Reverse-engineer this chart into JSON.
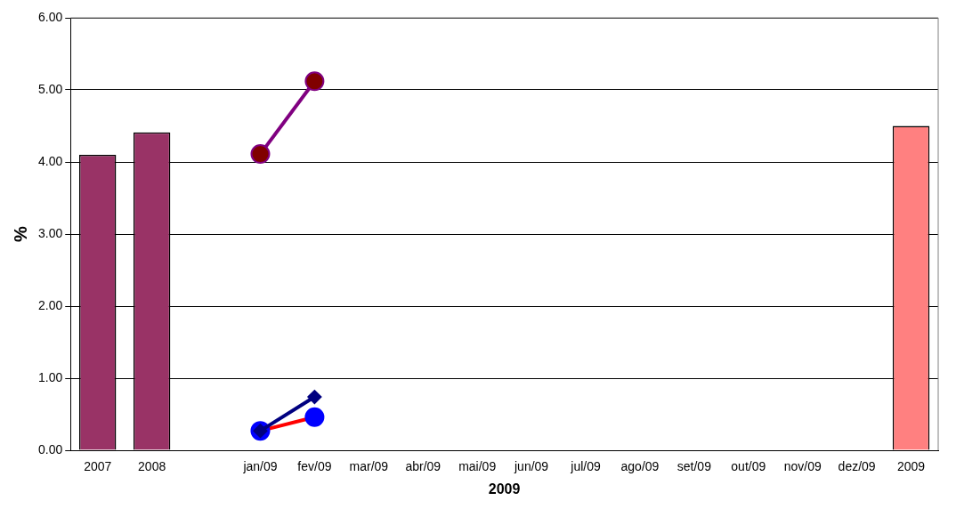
{
  "chart_data": {
    "type": "bar",
    "xlabel": "2009",
    "ylabel": "%",
    "categories": [
      "2007",
      "2008",
      null,
      "jan/09",
      "fev/09",
      "mar/09",
      "abr/09",
      "mai/09",
      "jun/09",
      "jul/09",
      "ago/09",
      "set/09",
      "out/09",
      "nov/09",
      "dez/09",
      "2009"
    ],
    "ylim": [
      0,
      6
    ],
    "yticks": [
      {
        "value": 0,
        "label": "0.00"
      },
      {
        "value": 1,
        "label": "1.00"
      },
      {
        "value": 2,
        "label": "2.00"
      },
      {
        "value": 3,
        "label": "3.00"
      },
      {
        "value": 4,
        "label": "4.00"
      },
      {
        "value": 5,
        "label": "5.00"
      },
      {
        "value": 6,
        "label": "6.00"
      }
    ],
    "grid": "y",
    "legend": false,
    "series": [
      {
        "color": "#993366",
        "colors": [
          "#993366",
          "#993366",
          null,
          null,
          null,
          null,
          null,
          null,
          null,
          null,
          null,
          null,
          null,
          null,
          null,
          "#ff8080"
        ],
        "values": [
          4.1,
          4.41,
          null,
          null,
          null,
          null,
          null,
          null,
          null,
          null,
          null,
          null,
          null,
          null,
          null,
          4.5
        ]
      },
      {
        "type": "line",
        "color": "#800080",
        "colors": [
          null,
          null,
          null,
          "#800000",
          "#800000",
          null,
          null,
          null,
          null,
          null,
          null,
          null,
          null,
          null,
          null,
          null
        ],
        "marker": "circle",
        "values": [
          null,
          null,
          null,
          4.11,
          5.12,
          null,
          null,
          null,
          null,
          null,
          null,
          null,
          null,
          null,
          null,
          null
        ]
      },
      {
        "type": "line",
        "color": "#000080",
        "colors": [
          null,
          null,
          null,
          "#000080",
          "#000080",
          null,
          null,
          null,
          null,
          null,
          null,
          null,
          null,
          null,
          null,
          null
        ],
        "marker": "diamond",
        "values": [
          null,
          null,
          null,
          0.27,
          0.74,
          null,
          null,
          null,
          null,
          null,
          null,
          null,
          null,
          null,
          null,
          null
        ]
      },
      {
        "type": "line",
        "color": "#ff0000",
        "colors": [
          null,
          null,
          null,
          "#0000ff",
          "#0000ff",
          null,
          null,
          null,
          null,
          null,
          null,
          null,
          null,
          null,
          null,
          null
        ],
        "marker": "circle",
        "values": [
          null,
          null,
          null,
          0.27,
          0.46,
          null,
          null,
          null,
          null,
          null,
          null,
          null,
          null,
          null,
          null,
          null
        ]
      }
    ]
  }
}
